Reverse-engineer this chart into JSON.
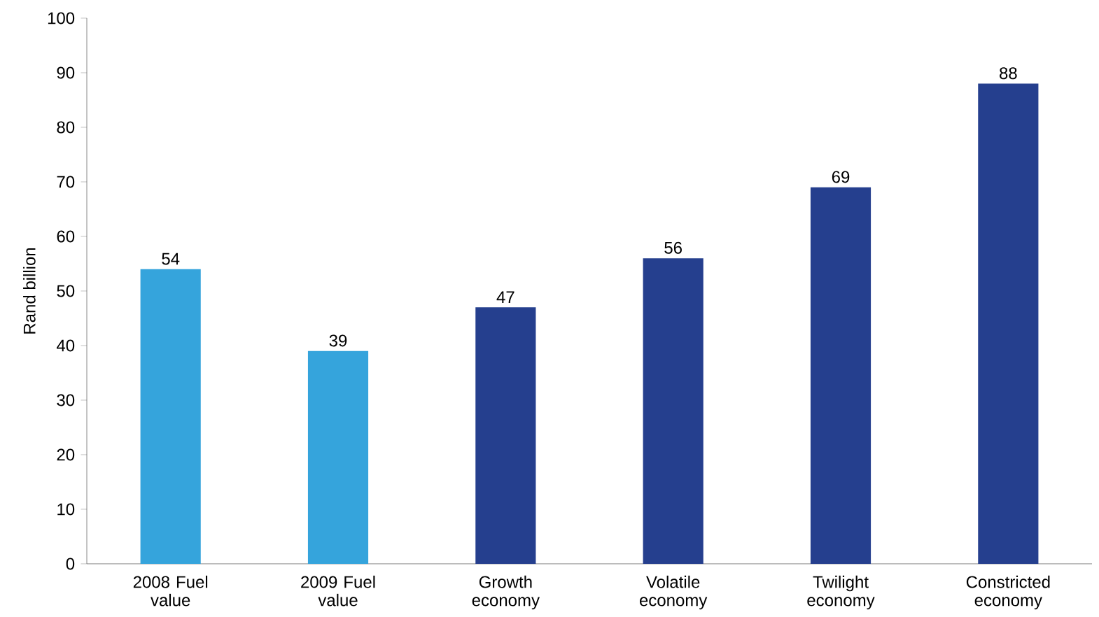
{
  "chart_data": {
    "type": "bar",
    "ylabel": "Rand billion",
    "categories": [
      "2008 Fuel value",
      "2009 Fuel value",
      "Growth economy",
      "Volatile economy",
      "Twilight economy",
      "Constricted economy"
    ],
    "values": [
      54,
      39,
      47,
      56,
      69,
      88
    ],
    "colors": [
      "#35a4dc",
      "#35a4dc",
      "#253f8e",
      "#253f8e",
      "#253f8e",
      "#253f8e"
    ],
    "ylim": [
      0,
      100
    ],
    "yticks": [
      0,
      10,
      20,
      30,
      40,
      50,
      60,
      70,
      80,
      90,
      100
    ],
    "data_labels": true,
    "grid": false
  }
}
